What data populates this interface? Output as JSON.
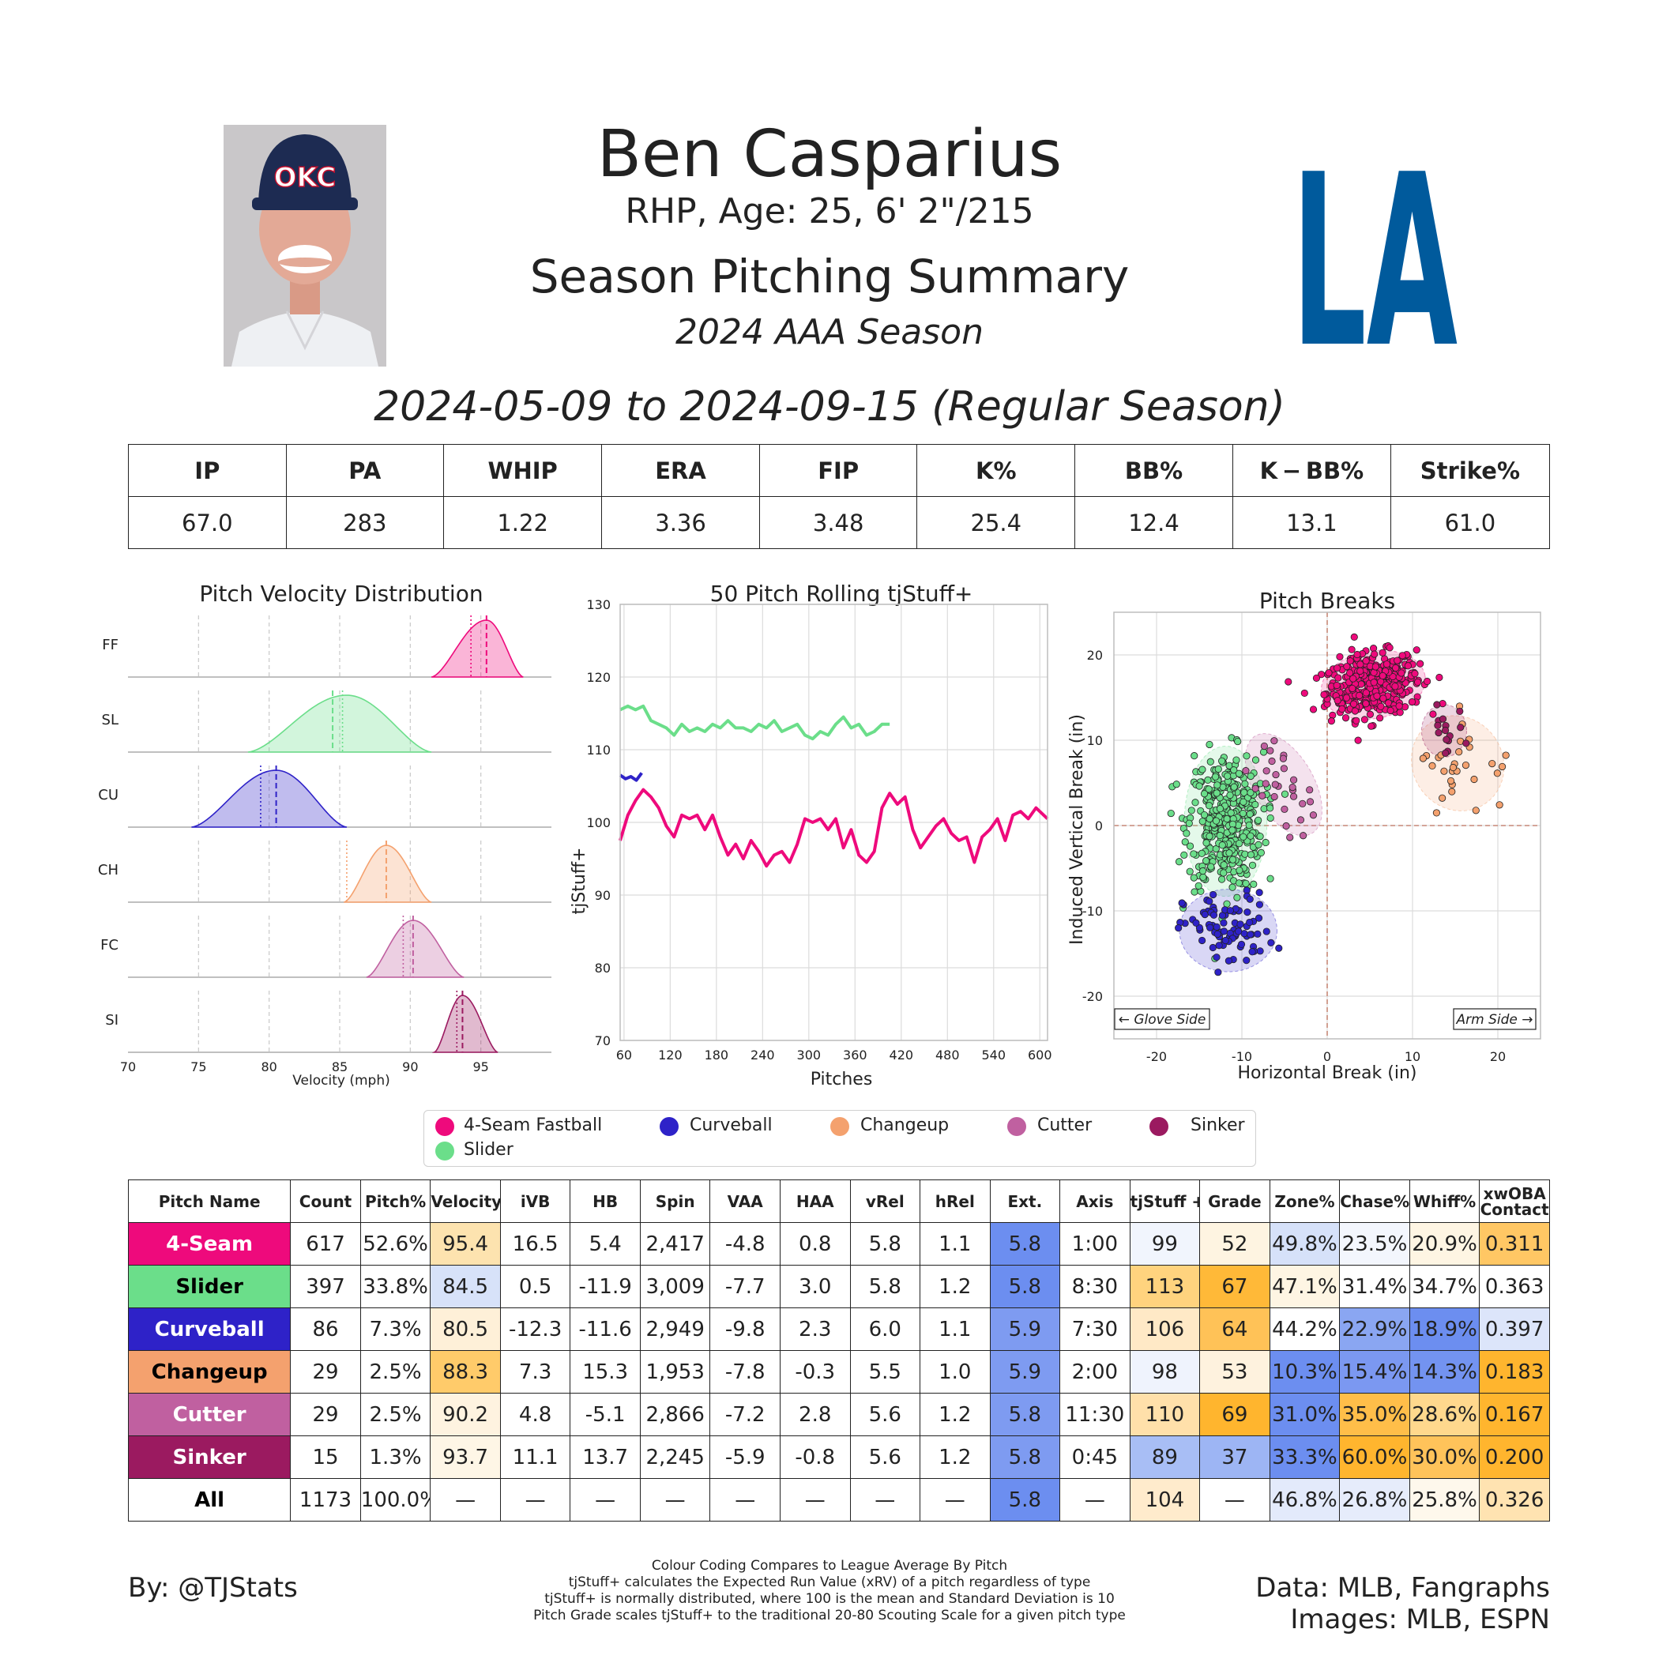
{
  "header": {
    "player_name": "Ben Casparius",
    "player_info": "RHP, Age: 25, 6' 2\"/215",
    "summary_title": "Season Pitching Summary",
    "season_label": "2024 AAA Season",
    "date_range": "2024-05-09 to 2024-09-15 (Regular Season)",
    "cap_logo_text": "OKC",
    "team_logo_text": "LA",
    "team_color": "#005A9C"
  },
  "stats": {
    "headers": [
      "IP",
      "PA",
      "WHIP",
      "ERA",
      "FIP",
      "K%",
      "BB%",
      "K − BB%",
      "Strike%"
    ],
    "values": [
      "67.0",
      "283",
      "1.22",
      "3.36",
      "3.48",
      "25.4",
      "12.4",
      "13.1",
      "61.0"
    ]
  },
  "pitch_colors": {
    "FF": "#EE0A7C",
    "SL": "#6BDE8A",
    "CU": "#2E22C8",
    "CH": "#F4A16E",
    "FC": "#C060A0",
    "SI": "#9B1A60"
  },
  "chart_data": [
    {
      "type": "area",
      "title": "Pitch Velocity Distribution",
      "xlabel": "Velocity (mph)",
      "xlim": [
        70,
        100
      ],
      "xticks": [
        70,
        75,
        80,
        85,
        90,
        95
      ],
      "series": [
        {
          "name": "FF",
          "color": "#EE0A7C",
          "range": [
            91.5,
            98.0
          ],
          "peak": 95.4,
          "mean": 95.4,
          "league_mean": 94.3
        },
        {
          "name": "SL",
          "color": "#6BDE8A",
          "range": [
            78.5,
            91.5
          ],
          "peak": 85.5,
          "mean": 84.5,
          "league_mean": 85.2
        },
        {
          "name": "CU",
          "color": "#2E22C8",
          "range": [
            74.5,
            85.5
          ],
          "peak": 80.5,
          "mean": 80.5,
          "league_mean": 79.4
        },
        {
          "name": "CH",
          "color": "#F4A16E",
          "range": [
            85.3,
            91.5
          ],
          "peak": 88.3,
          "mean": 88.3,
          "league_mean": 85.5
        },
        {
          "name": "FC",
          "color": "#C060A0",
          "range": [
            86.9,
            93.8
          ],
          "peak": 90.2,
          "mean": 90.2,
          "league_mean": 89.5
        },
        {
          "name": "SI",
          "color": "#9B1A60",
          "range": [
            91.7,
            96.2
          ],
          "peak": 93.7,
          "mean": 93.7,
          "league_mean": 93.3
        }
      ]
    },
    {
      "type": "line",
      "title": "50 Pitch Rolling tjStuff+",
      "xlabel": "Pitches",
      "ylabel": "tjStuff+",
      "xlim": [
        55,
        610
      ],
      "ylim": [
        70,
        130
      ],
      "xticks": [
        60,
        120,
        180,
        240,
        300,
        360,
        420,
        480,
        540,
        600
      ],
      "yticks": [
        70,
        80,
        90,
        100,
        110,
        120,
        130
      ],
      "series": [
        {
          "name": "FF",
          "color": "#EE0A7C",
          "x": [
            55,
            65,
            75,
            85,
            95,
            105,
            115,
            125,
            135,
            145,
            155,
            165,
            175,
            185,
            195,
            205,
            215,
            225,
            235,
            245,
            255,
            265,
            275,
            285,
            295,
            305,
            315,
            325,
            335,
            345,
            355,
            365,
            375,
            385,
            395,
            405,
            415,
            425,
            435,
            445,
            455,
            465,
            475,
            485,
            495,
            505,
            515,
            525,
            535,
            545,
            555,
            565,
            575,
            585,
            595,
            605,
            610
          ],
          "values": [
            97.5,
            101,
            103,
            104.5,
            103.5,
            102,
            99.5,
            98,
            101,
            100.5,
            101,
            99,
            101,
            98,
            95.5,
            97,
            95,
            97.5,
            96,
            94,
            95.5,
            96,
            94.5,
            97,
            100.5,
            100,
            100.5,
            99,
            100.5,
            96.5,
            99,
            95.5,
            94.5,
            96,
            102,
            104,
            102.5,
            103.5,
            99,
            96.5,
            98,
            99.5,
            100.5,
            98.5,
            97.5,
            98,
            94.5,
            98,
            99,
            100.5,
            97.5,
            101,
            101.5,
            100.5,
            102,
            101,
            100.5
          ]
        },
        {
          "name": "SL",
          "color": "#6BDE8A",
          "x": [
            55,
            65,
            75,
            85,
            95,
            105,
            115,
            125,
            135,
            145,
            155,
            165,
            175,
            185,
            195,
            205,
            215,
            225,
            235,
            245,
            255,
            265,
            275,
            285,
            295,
            305,
            315,
            325,
            335,
            345,
            355,
            365,
            375,
            385,
            395,
            405
          ],
          "values": [
            115.5,
            116,
            115.5,
            116,
            114,
            113.5,
            113,
            112,
            113.5,
            112.5,
            113,
            112.5,
            113.5,
            113,
            114,
            113,
            113,
            112.5,
            113.5,
            113,
            114,
            112.5,
            113,
            113.5,
            112,
            111.5,
            112.5,
            112,
            113.5,
            114.5,
            113,
            113.5,
            112,
            112.5,
            113.5,
            113.5
          ]
        },
        {
          "name": "CU",
          "color": "#2E22C8",
          "x": [
            55,
            62,
            69,
            76,
            83
          ],
          "values": [
            106.5,
            106,
            106.3,
            105.8,
            106.8
          ]
        }
      ]
    },
    {
      "type": "scatter",
      "title": "Pitch Breaks",
      "xlabel": "Horizontal Break (in)",
      "ylabel": "Induced Vertical Break (in)",
      "xlim": [
        -25,
        25
      ],
      "ylim": [
        -25,
        25
      ],
      "xticks": [
        -20,
        -10,
        0,
        10,
        20
      ],
      "yticks": [
        -20,
        -10,
        0,
        10,
        20
      ],
      "annotations": [
        "← Glove Side",
        "Arm Side →"
      ],
      "clusters": [
        {
          "name": "FF",
          "color": "#EE0A7C",
          "center": [
            5.4,
            16.5
          ],
          "spread": [
            2.8,
            1.8
          ],
          "count": 617,
          "shown": 420
        },
        {
          "name": "SL",
          "color": "#6BDE8A",
          "center": [
            -11.9,
            0.5
          ],
          "spread": [
            2.2,
            4.0
          ],
          "count": 397,
          "shown": 397
        },
        {
          "name": "CU",
          "color": "#2E22C8",
          "center": [
            -11.6,
            -12.3
          ],
          "spread": [
            2.6,
            2.2
          ],
          "count": 86,
          "shown": 86
        },
        {
          "name": "CH",
          "color": "#F4A16E",
          "center": [
            15.3,
            7.3
          ],
          "spread": [
            2.4,
            2.6
          ],
          "count": 29,
          "shown": 29
        },
        {
          "name": "FC",
          "color": "#C060A0",
          "center": [
            -5.1,
            4.8
          ],
          "spread": [
            1.6,
            3.0
          ],
          "count": 29,
          "shown": 29
        },
        {
          "name": "SI",
          "color": "#9B1A60",
          "center": [
            13.7,
            11.1
          ],
          "spread": [
            1.2,
            1.4
          ],
          "count": 15,
          "shown": 15
        }
      ]
    },
    {
      "type": "table",
      "columns": [
        "Pitch Name",
        "Count",
        "Pitch%",
        "Velocity",
        "iVB",
        "HB",
        "Spin",
        "VAA",
        "HAA",
        "vRel",
        "hRel",
        "Ext.",
        "Axis",
        "tjStuff +",
        "Grade",
        "Zone%",
        "Chase%",
        "Whiff%",
        "xwOBA\nContact"
      ],
      "rows": [
        {
          "cells": [
            "4-Seam",
            "617",
            "52.6%",
            "95.4",
            "16.5",
            "5.4",
            "2,417",
            "-4.8",
            "0.8",
            "5.8",
            "1.1",
            "5.8",
            "1:00",
            "99",
            "52",
            "49.8%",
            "23.5%",
            "20.9%",
            "0.311"
          ],
          "name_bg": "#EE0A7C",
          "name_color": "#ffffff",
          "bg": {
            "3": "#FDE3AF",
            "11": "#6C8EF0",
            "13": "#F1F5FD",
            "14": "#FEF4E1",
            "15": "#D6E1F9",
            "16": "#F3F6FD",
            "17": "#FEF5E3",
            "18": "#FFC764"
          }
        },
        {
          "cells": [
            "Slider",
            "397",
            "33.8%",
            "84.5",
            "0.5",
            "-11.9",
            "3,009",
            "-7.7",
            "3.0",
            "5.8",
            "1.2",
            "5.8",
            "8:30",
            "113",
            "67",
            "47.1%",
            "31.4%",
            "34.7%",
            "0.363"
          ],
          "name_bg": "#6BDE8A",
          "name_color": "#000000",
          "bg": {
            "3": "#D7E2F9",
            "11": "#6C8EF0",
            "13": "#FFD37E",
            "14": "#FFB938",
            "15": "#FEF5E3"
          }
        },
        {
          "cells": [
            "Curveball",
            "86",
            "7.3%",
            "80.5",
            "-12.3",
            "-11.6",
            "2,949",
            "-9.8",
            "2.3",
            "6.0",
            "1.1",
            "5.9",
            "7:30",
            "106",
            "64",
            "44.2%",
            "22.9%",
            "18.9%",
            "0.397"
          ],
          "name_bg": "#2E22C8",
          "name_color": "#ffffff",
          "bg": {
            "3": "#FEF0D8",
            "11": "#7E9BF1",
            "13": "#FFE9C6",
            "14": "#FFC257",
            "16": "#8AA6F2",
            "17": "#6C8EF0",
            "18": "#DCE5FA"
          }
        },
        {
          "cells": [
            "Changeup",
            "29",
            "2.5%",
            "88.3",
            "7.3",
            "15.3",
            "1,953",
            "-7.8",
            "-0.3",
            "5.5",
            "1.0",
            "5.9",
            "2:00",
            "98",
            "53",
            "10.3%",
            "15.4%",
            "14.3%",
            "0.183"
          ],
          "name_bg": "#F4A16E",
          "name_color": "#000000",
          "bg": {
            "3": "#FFCB6A",
            "11": "#7E9BF1",
            "13": "#EFF3FD",
            "14": "#FEF2DE",
            "15": "#6C8EF0",
            "16": "#7B98F1",
            "17": "#7393F0",
            "18": "#FFB52E"
          }
        },
        {
          "cells": [
            "Cutter",
            "29",
            "2.5%",
            "90.2",
            "4.8",
            "-5.1",
            "2,866",
            "-7.2",
            "2.8",
            "5.6",
            "1.2",
            "5.8",
            "11:30",
            "110",
            "69",
            "31.0%",
            "35.0%",
            "28.6%",
            "0.167"
          ],
          "name_bg": "#C060A0",
          "name_color": "#ffffff",
          "bg": {
            "3": "#FEF3E0",
            "11": "#7E9BF1",
            "13": "#FFE0AA",
            "14": "#FFB52E",
            "15": "#6C8EF0",
            "16": "#FFBE49",
            "17": "#FFD88D",
            "18": "#FFB52E"
          }
        },
        {
          "cells": [
            "Sinker",
            "15",
            "1.3%",
            "93.7",
            "11.1",
            "13.7",
            "2,245",
            "-5.9",
            "-0.8",
            "5.6",
            "1.2",
            "5.8",
            "0:45",
            "89",
            "37",
            "33.3%",
            "60.0%",
            "30.0%",
            "0.200"
          ],
          "name_bg": "#9B1A60",
          "name_color": "#ffffff",
          "bg": {
            "3": "#FEF6E6",
            "11": "#7E9BF1",
            "13": "#A8BEF5",
            "14": "#9DB5F4",
            "15": "#6C8EF0",
            "16": "#FFB52E",
            "17": "#FFC35A",
            "18": "#FFB52E"
          }
        },
        {
          "cells": [
            "All",
            "1173",
            "100.0%",
            "—",
            "—",
            "—",
            "—",
            "—",
            "—",
            "—",
            "—",
            "5.8",
            "—",
            "104",
            "—",
            "46.8%",
            "26.8%",
            "25.8%",
            "0.326"
          ],
          "name_bg": "#ffffff",
          "name_color": "#000000",
          "bg": {
            "11": "#6C8EF0",
            "13": "#FFEBCC",
            "15": "#E3EAFB",
            "16": "#E6ECFB",
            "17": "#FEF8EC",
            "18": "#FFE3B1"
          }
        }
      ]
    }
  ],
  "legend": [
    {
      "label": "4-Seam Fastball",
      "color": "#EE0A7C"
    },
    {
      "label": "Curveball",
      "color": "#2E22C8"
    },
    {
      "label": "Changeup",
      "color": "#F4A16E"
    },
    {
      "label": "Cutter",
      "color": "#C060A0"
    },
    {
      "label": "Sinker",
      "color": "#9B1A60"
    },
    {
      "label": "Slider",
      "color": "#6BDE8A"
    }
  ],
  "footer": {
    "credit_left": "By: @TJStats",
    "notes": [
      "Colour Coding Compares to League Average By Pitch",
      "tjStuff+ calculates the Expected Run Value (xRV) of a pitch regardless of type",
      "tjStuff+ is normally distributed, where 100 is the mean and Standard Deviation is 10",
      "Pitch Grade scales tjStuff+ to the traditional 20-80 Scouting Scale for a given pitch type"
    ],
    "credit_data": "Data: MLB, Fangraphs",
    "credit_images": "Images: MLB, ESPN"
  }
}
